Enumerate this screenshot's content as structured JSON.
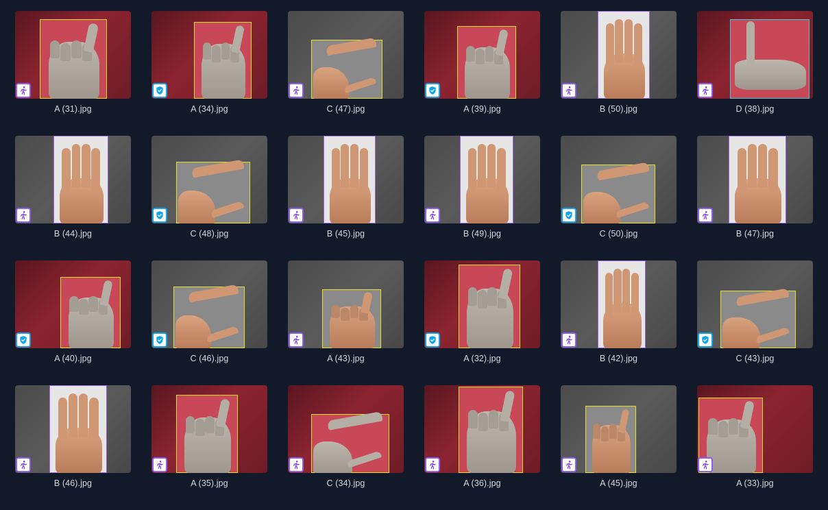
{
  "gallery": {
    "items": [
      {
        "filename": "A (31).jpg",
        "bg": "red",
        "box": "yellow",
        "pose": "fist",
        "badge": "run-icon"
      },
      {
        "filename": "A (34).jpg",
        "bg": "red",
        "box": "yellow",
        "pose": "fist",
        "badge": "shield-check-icon"
      },
      {
        "filename": "C (47).jpg",
        "bg": "grey",
        "box": "yellow",
        "pose": "c",
        "badge": "run-icon"
      },
      {
        "filename": "A (39).jpg",
        "bg": "red",
        "box": "yellow",
        "pose": "fist",
        "badge": "shield-check-icon"
      },
      {
        "filename": "B (50).jpg",
        "bg": "grey",
        "box": "purple",
        "pose": "open",
        "badge": "run-icon"
      },
      {
        "filename": "D (38).jpg",
        "bg": "red",
        "box": "cyan",
        "pose": "point",
        "badge": "run-icon"
      },
      {
        "filename": "B (44).jpg",
        "bg": "grey",
        "box": "purple",
        "pose": "open",
        "badge": "run-icon"
      },
      {
        "filename": "C (48).jpg",
        "bg": "grey",
        "box": "yellow",
        "pose": "c",
        "badge": "shield-check-icon"
      },
      {
        "filename": "B (45).jpg",
        "bg": "grey",
        "box": "purple",
        "pose": "open",
        "badge": "run-icon"
      },
      {
        "filename": "B (49).jpg",
        "bg": "grey",
        "box": "purple",
        "pose": "open",
        "badge": "run-icon"
      },
      {
        "filename": "C (50).jpg",
        "bg": "grey",
        "box": "yellow",
        "pose": "c",
        "badge": "shield-check-icon"
      },
      {
        "filename": "B (47).jpg",
        "bg": "grey",
        "box": "purple",
        "pose": "open",
        "badge": "run-icon"
      },
      {
        "filename": "A (40).jpg",
        "bg": "red",
        "box": "yellow",
        "pose": "fist",
        "badge": "shield-check-icon"
      },
      {
        "filename": "C (46).jpg",
        "bg": "grey",
        "box": "yellow",
        "pose": "c",
        "badge": "shield-check-icon"
      },
      {
        "filename": "A (43).jpg",
        "bg": "grey",
        "box": "yellow",
        "pose": "fist",
        "badge": "run-icon"
      },
      {
        "filename": "A (32).jpg",
        "bg": "red",
        "box": "yellow",
        "pose": "fist",
        "badge": "shield-check-icon"
      },
      {
        "filename": "B (42).jpg",
        "bg": "grey",
        "box": "purple",
        "pose": "open",
        "badge": "run-icon"
      },
      {
        "filename": "C (43).jpg",
        "bg": "grey",
        "box": "yellow",
        "pose": "c",
        "badge": "shield-check-icon"
      },
      {
        "filename": "B (46).jpg",
        "bg": "grey",
        "box": "purple",
        "pose": "open",
        "badge": "run-icon"
      },
      {
        "filename": "A (35).jpg",
        "bg": "red",
        "box": "yellow",
        "pose": "fist",
        "badge": "run-icon"
      },
      {
        "filename": "C (34).jpg",
        "bg": "red",
        "box": "yellow",
        "pose": "c",
        "badge": "run-icon"
      },
      {
        "filename": "A (36).jpg",
        "bg": "red",
        "box": "yellow",
        "pose": "fist",
        "badge": "run-icon"
      },
      {
        "filename": "A (45).jpg",
        "bg": "grey",
        "box": "yellow",
        "pose": "fist",
        "badge": "run-icon"
      },
      {
        "filename": "A (33).jpg",
        "bg": "red",
        "box": "yellow",
        "pose": "fist",
        "badge": "run-icon"
      }
    ]
  }
}
